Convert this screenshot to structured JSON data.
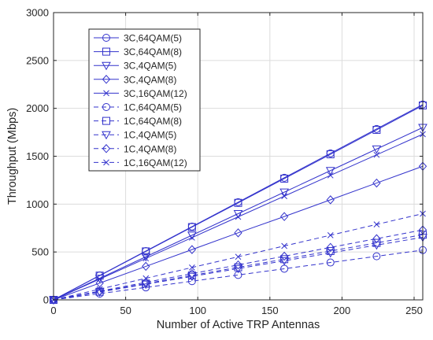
{
  "chart_data": {
    "type": "line",
    "xlabel": "Number of Active TRP Antennas",
    "ylabel": "Throughput (Mbps)",
    "xlim": [
      0,
      256
    ],
    "ylim": [
      0,
      3000
    ],
    "xticks": [
      0,
      50,
      100,
      150,
      200,
      250
    ],
    "yticks": [
      0,
      500,
      1000,
      1500,
      2000,
      2500,
      3000
    ],
    "grid": true,
    "legend_position": "top-left",
    "color": "#3333cc",
    "x": [
      0,
      32,
      64,
      96,
      128,
      160,
      192,
      224,
      256
    ],
    "series": [
      {
        "name": "3C,64QAM(5)",
        "marker": "circle",
        "line": "solid",
        "values": [
          0,
          255,
          510,
          765,
          1020,
          1275,
          1530,
          1785,
          2040
        ]
      },
      {
        "name": "3C,64QAM(8)",
        "marker": "square",
        "line": "solid",
        "values": [
          0,
          253,
          506,
          760,
          1013,
          1266,
          1520,
          1775,
          2030
        ]
      },
      {
        "name": "3C,4QAM(5)",
        "marker": "triangle-down",
        "line": "solid",
        "values": [
          0,
          225,
          450,
          675,
          900,
          1125,
          1350,
          1575,
          1800
        ]
      },
      {
        "name": "3C,4QAM(8)",
        "marker": "diamond",
        "line": "solid",
        "values": [
          0,
          175,
          350,
          525,
          700,
          870,
          1045,
          1220,
          1395
        ]
      },
      {
        "name": "3C,16QAM(12)",
        "marker": "x",
        "line": "solid",
        "values": [
          0,
          217,
          433,
          650,
          867,
          1083,
          1300,
          1515,
          1730
        ]
      },
      {
        "name": "1C,64QAM(5)",
        "marker": "circle",
        "line": "dashed",
        "values": [
          0,
          65,
          130,
          195,
          260,
          325,
          390,
          455,
          520
        ]
      },
      {
        "name": "1C,64QAM(8)",
        "marker": "square",
        "line": "dashed",
        "values": [
          0,
          85,
          170,
          255,
          340,
          425,
          510,
          595,
          680
        ]
      },
      {
        "name": "1C,4QAM(5)",
        "marker": "triangle-down",
        "line": "dashed",
        "values": [
          0,
          82,
          163,
          245,
          327,
          408,
          490,
          572,
          653
        ]
      },
      {
        "name": "1C,4QAM(8)",
        "marker": "diamond",
        "line": "dashed",
        "values": [
          0,
          91,
          183,
          274,
          365,
          456,
          548,
          639,
          730
        ]
      },
      {
        "name": "1C,16QAM(12)",
        "marker": "x",
        "line": "dashed",
        "values": [
          0,
          112,
          225,
          338,
          450,
          563,
          675,
          788,
          900
        ]
      }
    ]
  }
}
